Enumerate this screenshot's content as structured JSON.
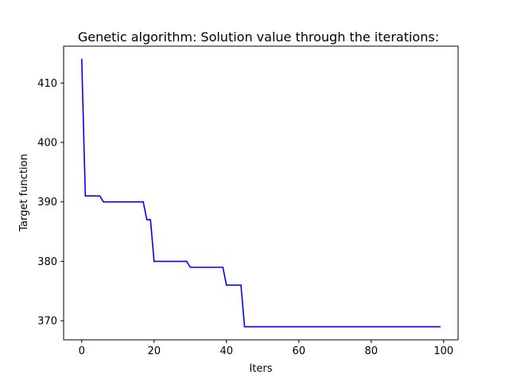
{
  "chart_data": {
    "type": "line",
    "title": "Genetic algorithm: Solution value through the iterations:",
    "xlabel": "Iters",
    "ylabel": "Target function",
    "xlim": [
      -5,
      104
    ],
    "ylim": [
      366.8,
      416.2
    ],
    "xticks": [
      0,
      20,
      40,
      60,
      80,
      100
    ],
    "yticks": [
      370,
      380,
      390,
      400,
      410
    ],
    "grid": false,
    "legend": "none",
    "color": "#0000ff",
    "series": [
      {
        "points": [
          [
            0,
            414
          ],
          [
            1,
            391
          ],
          [
            5,
            391
          ],
          [
            6,
            390
          ],
          [
            17,
            390
          ],
          [
            18,
            387
          ],
          [
            19,
            387
          ],
          [
            20,
            380
          ],
          [
            29,
            380
          ],
          [
            30,
            379
          ],
          [
            39,
            379
          ],
          [
            40,
            376
          ],
          [
            44,
            376
          ],
          [
            45,
            369
          ],
          [
            99,
            369
          ]
        ]
      }
    ]
  }
}
